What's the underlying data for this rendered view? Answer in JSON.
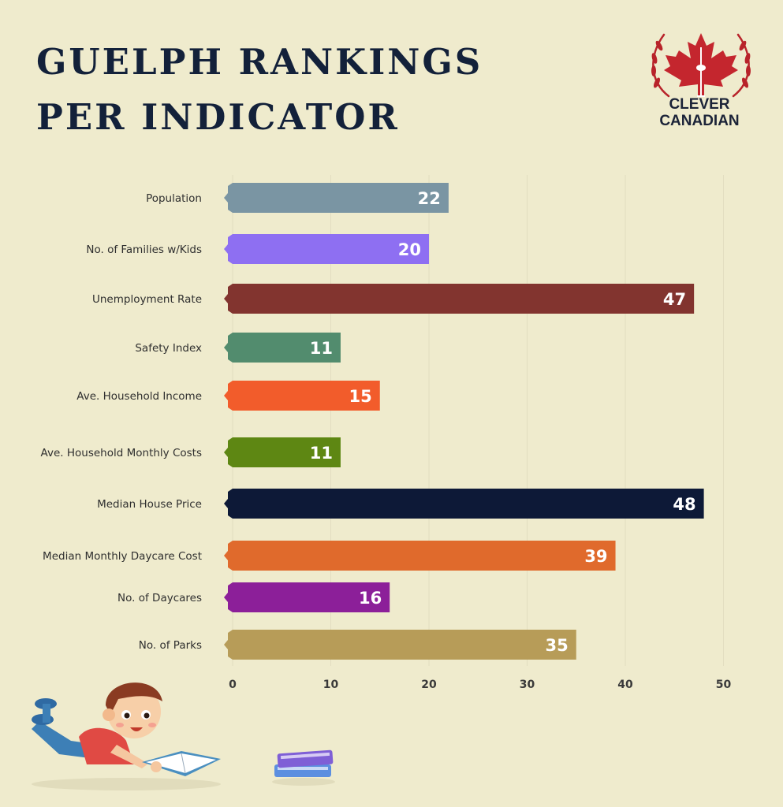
{
  "header": {
    "title_line1": "GUELPH RANKINGS",
    "title_line2": "PER INDICATOR"
  },
  "logo": {
    "line1": "CLEVER",
    "line2": "CANADIAN",
    "icon": "maple-leaf-icon"
  },
  "colors": {
    "background": "#efebcd",
    "title": "#13213a",
    "grid": "#e2ddc0",
    "label": "#2f2f2f"
  },
  "chart_data": {
    "type": "bar",
    "orientation": "horizontal",
    "title": "GUELPH RANKINGS PER INDICATOR",
    "xlabel": "",
    "ylabel": "",
    "xlim": [
      0,
      50
    ],
    "ticks": [
      0,
      10,
      20,
      30,
      40,
      50
    ],
    "grid": true,
    "categories": [
      "Population",
      "No. of Families w/Kids",
      "Unemployment Rate",
      "Safety Index",
      "Ave. Household Income",
      "Ave. Household Monthly Costs",
      "Median House Price",
      "Median Monthly Daycare Cost",
      "No. of Daycares",
      "No. of Parks"
    ],
    "values": [
      22,
      20,
      47,
      11,
      15,
      11,
      48,
      39,
      16,
      35
    ],
    "bar_colors": [
      "#7a95a3",
      "#8e6ff2",
      "#82342f",
      "#528c6e",
      "#f25c2b",
      "#5e8713",
      "#0d1937",
      "#e06a2c",
      "#8c1f99",
      "#b79c58"
    ]
  }
}
